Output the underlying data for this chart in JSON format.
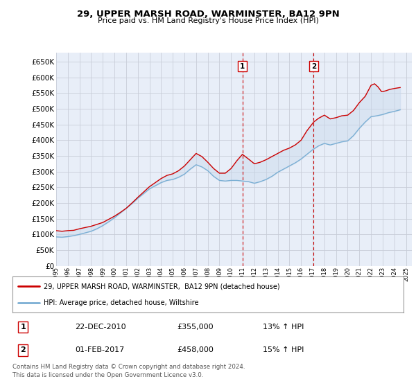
{
  "title": "29, UPPER MARSH ROAD, WARMINSTER, BA12 9PN",
  "subtitle": "Price paid vs. HM Land Registry's House Price Index (HPI)",
  "ylabel_ticks": [
    0,
    50000,
    100000,
    150000,
    200000,
    250000,
    300000,
    350000,
    400000,
    450000,
    500000,
    550000,
    600000,
    650000
  ],
  "ylim": [
    0,
    680000
  ],
  "xlim_start": 1995.0,
  "xlim_end": 2025.5,
  "marker1_x": 2010.97,
  "marker1_label": "1",
  "marker1_date": "22-DEC-2010",
  "marker1_price": "£355,000",
  "marker1_hpi": "13% ↑ HPI",
  "marker2_x": 2017.08,
  "marker2_label": "2",
  "marker2_date": "01-FEB-2017",
  "marker2_price": "£458,000",
  "marker2_hpi": "15% ↑ HPI",
  "legend_line1": "29, UPPER MARSH ROAD, WARMINSTER,  BA12 9PN (detached house)",
  "legend_line2": "HPI: Average price, detached house, Wiltshire",
  "footnote": "Contains HM Land Registry data © Crown copyright and database right 2024.\nThis data is licensed under the Open Government Licence v3.0.",
  "background_color": "#ffffff",
  "plot_bg_color": "#e8eef8",
  "grid_color": "#c8cdd8",
  "red_color": "#cc0000",
  "blue_color": "#7bafd4",
  "shade_color": "#c8d8ec",
  "marker_box_color": "#cc0000",
  "dashed_line_color": "#cc0000",
  "red_x": [
    1995.0,
    1995.5,
    1996.0,
    1996.5,
    1997.0,
    1997.5,
    1998.0,
    1998.5,
    1999.0,
    1999.5,
    2000.0,
    2000.5,
    2001.0,
    2001.5,
    2002.0,
    2002.5,
    2003.0,
    2003.5,
    2004.0,
    2004.5,
    2005.0,
    2005.5,
    2006.0,
    2006.5,
    2007.0,
    2007.5,
    2008.0,
    2008.5,
    2009.0,
    2009.5,
    2010.0,
    2010.5,
    2010.97,
    2011.5,
    2012.0,
    2012.5,
    2013.0,
    2013.5,
    2014.0,
    2014.5,
    2015.0,
    2015.5,
    2016.0,
    2016.5,
    2017.08,
    2017.5,
    2018.0,
    2018.5,
    2019.0,
    2019.5,
    2020.0,
    2020.5,
    2021.0,
    2021.5,
    2022.0,
    2022.3,
    2022.6,
    2022.9,
    2023.0,
    2023.3,
    2023.6,
    2024.0,
    2024.5
  ],
  "red_y": [
    112000,
    110000,
    112000,
    113000,
    118000,
    122000,
    126000,
    132000,
    138000,
    148000,
    158000,
    170000,
    183000,
    200000,
    218000,
    235000,
    252000,
    265000,
    278000,
    288000,
    293000,
    303000,
    318000,
    338000,
    358000,
    348000,
    330000,
    310000,
    295000,
    295000,
    310000,
    335000,
    355000,
    340000,
    325000,
    330000,
    338000,
    348000,
    358000,
    368000,
    375000,
    385000,
    400000,
    430000,
    458000,
    470000,
    480000,
    468000,
    472000,
    478000,
    480000,
    495000,
    520000,
    540000,
    575000,
    580000,
    570000,
    555000,
    555000,
    558000,
    562000,
    565000,
    568000
  ],
  "blue_x": [
    1995.0,
    1995.5,
    1996.0,
    1996.5,
    1997.0,
    1997.5,
    1998.0,
    1998.5,
    1999.0,
    1999.5,
    2000.0,
    2000.5,
    2001.0,
    2001.5,
    2002.0,
    2002.5,
    2003.0,
    2003.5,
    2004.0,
    2004.5,
    2005.0,
    2005.5,
    2006.0,
    2006.5,
    2007.0,
    2007.5,
    2008.0,
    2008.5,
    2009.0,
    2009.5,
    2010.0,
    2010.5,
    2011.0,
    2011.5,
    2012.0,
    2012.5,
    2013.0,
    2013.5,
    2014.0,
    2014.5,
    2015.0,
    2015.5,
    2016.0,
    2016.5,
    2017.0,
    2017.5,
    2018.0,
    2018.5,
    2019.0,
    2019.5,
    2020.0,
    2020.5,
    2021.0,
    2021.5,
    2022.0,
    2022.5,
    2023.0,
    2023.5,
    2024.0,
    2024.5
  ],
  "blue_y": [
    92000,
    91000,
    93000,
    96000,
    100000,
    105000,
    110000,
    118000,
    128000,
    140000,
    153000,
    168000,
    183000,
    198000,
    215000,
    230000,
    245000,
    255000,
    265000,
    272000,
    275000,
    282000,
    292000,
    308000,
    322000,
    315000,
    303000,
    285000,
    272000,
    270000,
    272000,
    272000,
    270000,
    268000,
    263000,
    268000,
    275000,
    285000,
    298000,
    308000,
    318000,
    328000,
    340000,
    355000,
    370000,
    382000,
    390000,
    385000,
    390000,
    395000,
    398000,
    415000,
    438000,
    458000,
    475000,
    478000,
    482000,
    488000,
    492000,
    497000
  ]
}
